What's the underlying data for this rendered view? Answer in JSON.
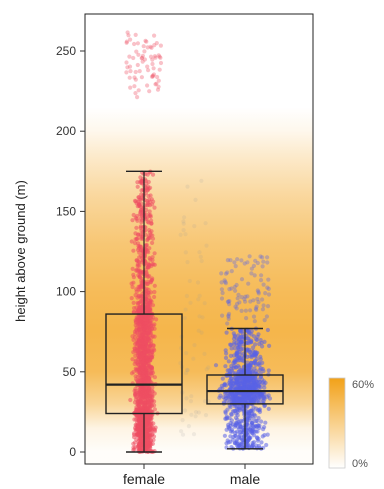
{
  "chart_data": {
    "type": "box",
    "ylabel": "height above ground (m)",
    "ylim": [
      0,
      270
    ],
    "yticks": [
      {
        "value": 0,
        "label": "0"
      },
      {
        "value": 50,
        "label": "50"
      },
      {
        "value": 100,
        "label": "100"
      },
      {
        "value": 150,
        "label": "150"
      },
      {
        "value": 200,
        "label": "200"
      },
      {
        "value": 250,
        "label": "250"
      }
    ],
    "categories": [
      "female",
      "male"
    ],
    "boxes": [
      {
        "category": "female",
        "whisker_low": 0,
        "q1": 24,
        "median": 42,
        "q3": 86,
        "whisker_high": 175,
        "point_color": "#ef4f63",
        "outlier_range": [
          220,
          262
        ]
      },
      {
        "category": "male",
        "whisker_low": 2,
        "q1": 30,
        "median": 38,
        "q3": 48,
        "whisker_high": 77,
        "point_color": "#5a63e6",
        "outlier_range": [
          80,
          122
        ]
      }
    ],
    "background_density": {
      "color": "#f2a118",
      "profile": [
        {
          "y": 0,
          "opacity": 0.02
        },
        {
          "y": 15,
          "opacity": 0.12
        },
        {
          "y": 30,
          "opacity": 0.45
        },
        {
          "y": 50,
          "opacity": 0.72
        },
        {
          "y": 75,
          "opacity": 0.78
        },
        {
          "y": 100,
          "opacity": 0.72
        },
        {
          "y": 130,
          "opacity": 0.6
        },
        {
          "y": 160,
          "opacity": 0.42
        },
        {
          "y": 185,
          "opacity": 0.22
        },
        {
          "y": 200,
          "opacity": 0.08
        },
        {
          "y": 215,
          "opacity": 0.0
        }
      ]
    },
    "legend": {
      "placement": "bottom-right",
      "max_label": "60%",
      "min_label": "0%",
      "color": "#f2a118"
    },
    "grid": false
  }
}
